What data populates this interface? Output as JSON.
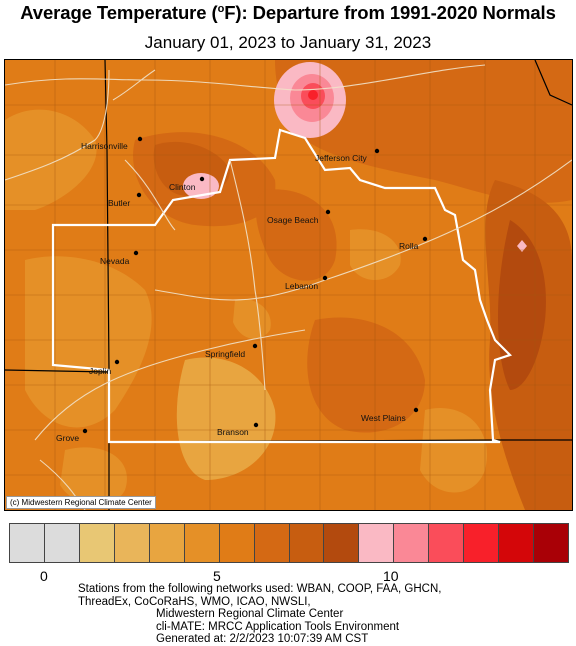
{
  "title": {
    "prefix": "Average Temperature (",
    "degree": "o",
    "suffix": "F): Departure from 1991-2020 Normals"
  },
  "subtitle": "January 01, 2023 to January 31, 2023",
  "copyright": "(c) Midwestern Regional Climate Center",
  "cities": [
    {
      "name": "Harrisonville"
    },
    {
      "name": "Clinton"
    },
    {
      "name": "Butler"
    },
    {
      "name": "Jefferson City"
    },
    {
      "name": "Osage Beach"
    },
    {
      "name": "Rolla"
    },
    {
      "name": "Nevada"
    },
    {
      "name": "Lebanon"
    },
    {
      "name": "Springfield"
    },
    {
      "name": "Joplin"
    },
    {
      "name": "West Plains"
    },
    {
      "name": "Grove"
    },
    {
      "name": "Branson"
    }
  ],
  "legend": {
    "colors": [
      "#dcdcdc",
      "#dcdcdc",
      "#e8c774",
      "#e9b55a",
      "#e8a540",
      "#e59027",
      "#e07c17",
      "#d46914",
      "#c75d10",
      "#b34a0e",
      "#fab9c4",
      "#fa8896",
      "#fa4d5a",
      "#f8202a",
      "#d40609",
      "#a90006"
    ],
    "ticks": [
      "0",
      "5",
      "10"
    ]
  },
  "footer": {
    "line1": "Stations from the following networks used: WBAN, COOP, FAA, GHCN,",
    "line2": "ThreadEx, CoCoRaHS, WMO, ICAO, NWSLI,",
    "line3": "Midwestern Regional Climate Center",
    "line4": "cli-MATE: MRCC Application Tools Environment",
    "line5": "Generated at: 2/2/2023 10:07:39 AM CST"
  }
}
